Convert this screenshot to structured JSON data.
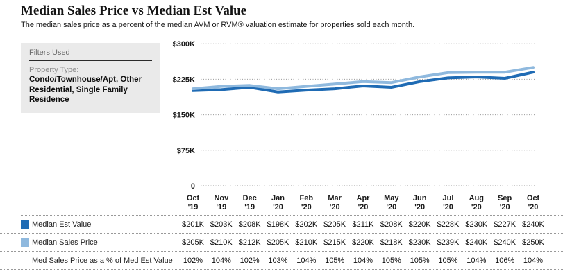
{
  "header": {
    "title": "Median Sales Price vs Median Est Value",
    "subtitle": "The median sales price as a percent of the median AVM or RVM® valuation estimate for properties sold each month."
  },
  "filters": {
    "title": "Filters Used",
    "property_type_label": "Property Type:",
    "property_type_value": "Condo/Townhouse/Apt, Other Residential, Single Family Residence"
  },
  "colors": {
    "median_est_value": "#1f6bb4",
    "median_sales_price": "#8fb9de",
    "gridline": "#9a9a9a"
  },
  "chart_data": {
    "type": "line",
    "categories": [
      "Oct '19",
      "Nov '19",
      "Dec '19",
      "Jan '20",
      "Feb '20",
      "Mar '20",
      "Apr '20",
      "May '20",
      "Jun '20",
      "Jul '20",
      "Aug '20",
      "Sep '20",
      "Oct '20"
    ],
    "series": [
      {
        "name": "Median Est Value",
        "color": "#1f6bb4",
        "values_k": [
          201,
          203,
          208,
          198,
          202,
          205,
          211,
          208,
          220,
          228,
          230,
          227,
          240
        ]
      },
      {
        "name": "Median Sales Price",
        "color": "#8fb9de",
        "values_k": [
          205,
          210,
          212,
          205,
          210,
          215,
          220,
          218,
          230,
          239,
          240,
          240,
          250
        ]
      }
    ],
    "ytick_labels": [
      "$300K",
      "$225K",
      "$150K",
      "$75K",
      "0"
    ],
    "ytick_values_k": [
      300,
      225,
      150,
      75,
      0
    ],
    "ylim_k": [
      0,
      300
    ],
    "grid": "dotted-horizontal",
    "legend_position": "left-of-table-rows"
  },
  "table": {
    "rows": [
      {
        "label": "Median Est Value",
        "swatch_color": "#1f6bb4",
        "values": [
          "$201K",
          "$203K",
          "$208K",
          "$198K",
          "$202K",
          "$205K",
          "$211K",
          "$208K",
          "$220K",
          "$228K",
          "$230K",
          "$227K",
          "$240K"
        ]
      },
      {
        "label": "Median Sales Price",
        "swatch_color": "#8fb9de",
        "values": [
          "$205K",
          "$210K",
          "$212K",
          "$205K",
          "$210K",
          "$215K",
          "$220K",
          "$218K",
          "$230K",
          "$239K",
          "$240K",
          "$240K",
          "$250K"
        ]
      },
      {
        "label": "Med Sales Price as a % of Med Est Value",
        "swatch_color": null,
        "values": [
          "102%",
          "104%",
          "102%",
          "103%",
          "104%",
          "105%",
          "104%",
          "105%",
          "105%",
          "105%",
          "104%",
          "106%",
          "104%"
        ]
      }
    ]
  }
}
